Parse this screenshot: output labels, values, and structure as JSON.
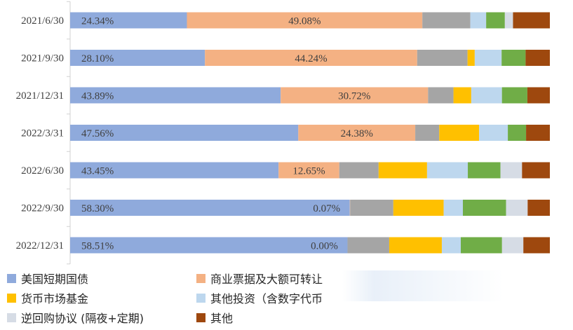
{
  "chart_data": {
    "type": "bar",
    "orientation": "horizontal",
    "stacked": true,
    "normalized": true,
    "title": "",
    "xlabel": "",
    "ylabel": "",
    "xlim": [
      0,
      100
    ],
    "categories": [
      "2021/6/30",
      "2021/9/30",
      "2021/12/31",
      "2022/3/31",
      "2022/6/30",
      "2022/9/30",
      "2022/12/31"
    ],
    "series": [
      {
        "name": "美国短期国债",
        "color": "#8faadc",
        "values": [
          24.34,
          28.1,
          43.89,
          47.56,
          43.45,
          58.3,
          58.51
        ],
        "labels": [
          "24.34%",
          "28.10%",
          "43.89%",
          "47.56%",
          "43.45%",
          "58.30%",
          "58.51%"
        ]
      },
      {
        "name": "商业票据及大额可转让",
        "color": "#f4b183",
        "values": [
          49.08,
          44.24,
          30.72,
          24.38,
          12.65,
          0.07,
          0.0
        ],
        "labels": [
          "49.08%",
          "44.24%",
          "30.72%",
          "24.38%",
          "12.65%",
          "0.07%",
          "0.00%"
        ]
      },
      {
        "name": "",
        "color": "#a5a5a5",
        "values": [
          10.0,
          10.5,
          5.3,
          5.0,
          8.2,
          9.0,
          8.8
        ]
      },
      {
        "name": "货币市场基金",
        "color": "#ffc000",
        "values": [
          0.0,
          1.5,
          3.7,
          8.3,
          10.1,
          10.5,
          11.1
        ]
      },
      {
        "name": "其他投资（含数字代币）",
        "color": "#bdd7ee",
        "values": [
          3.3,
          5.6,
          6.4,
          6.0,
          8.5,
          4.0,
          4.0
        ]
      },
      {
        "name": "",
        "color": "#70ad47",
        "values": [
          3.9,
          5.0,
          5.3,
          3.8,
          6.8,
          9.0,
          8.7
        ]
      },
      {
        "name": "逆回购协议 (隔夜+定期)",
        "color": "#d6dce5",
        "values": [
          1.7,
          0.0,
          0.0,
          0.0,
          4.5,
          4.5,
          4.5
        ]
      },
      {
        "name": "其他",
        "color": "#9e480e",
        "values": [
          7.68,
          5.06,
          4.69,
          4.96,
          5.8,
          4.63,
          5.59
        ]
      }
    ],
    "grid": false,
    "legend_position": "bottom"
  },
  "legend": [
    {
      "label": "美国短期国债",
      "color": "#8faadc"
    },
    {
      "label": "商业票据及大额可转让",
      "color": "#f4b183"
    },
    {
      "label": "货币市场基金",
      "color": "#ffc000"
    },
    {
      "label": "其他投资（含数字代币",
      "color": "#bdd7ee"
    },
    {
      "label": "逆回购协议 (隔夜+定期)",
      "color": "#d6dce5"
    },
    {
      "label": "其他",
      "color": "#9e480e"
    }
  ]
}
